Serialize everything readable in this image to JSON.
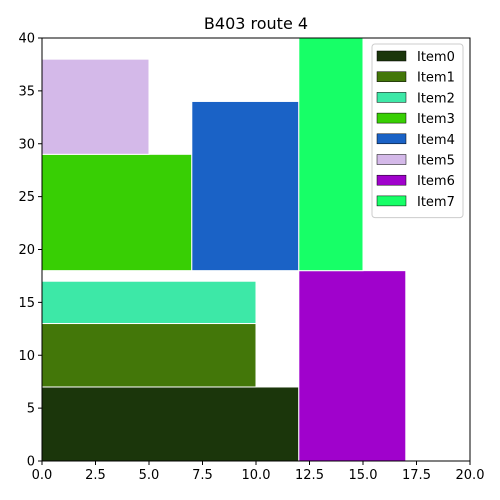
{
  "chart_data": {
    "type": "bar",
    "title": "B403 route 4",
    "xlabel": "",
    "ylabel": "",
    "xlim": [
      0,
      20
    ],
    "ylim": [
      0,
      40
    ],
    "xticks": [
      "0.0",
      "2.5",
      "5.0",
      "7.5",
      "10.0",
      "12.5",
      "15.0",
      "17.5",
      "20.0"
    ],
    "yticks": [
      "0",
      "5",
      "10",
      "15",
      "20",
      "25",
      "30",
      "35",
      "40"
    ],
    "grid": false,
    "legend_position": "top-right",
    "rectangles": [
      {
        "name": "Item0",
        "x0": 0,
        "x1": 12,
        "y0": 0,
        "y1": 7,
        "color": "#1b360b"
      },
      {
        "name": "Item1",
        "x0": 0,
        "x1": 10,
        "y0": 7,
        "y1": 13,
        "color": "#437709"
      },
      {
        "name": "Item2",
        "x0": 0,
        "x1": 10,
        "y0": 13,
        "y1": 17,
        "color": "#3de8a7"
      },
      {
        "name": "Item3",
        "x0": 0,
        "x1": 7,
        "y0": 18,
        "y1": 29,
        "color": "#38cf04"
      },
      {
        "name": "Item4",
        "x0": 7,
        "x1": 12,
        "y0": 18,
        "y1": 34,
        "color": "#1a62c6"
      },
      {
        "name": "Item5",
        "x0": 0,
        "x1": 5,
        "y0": 29,
        "y1": 38,
        "color": "#d4b9e9"
      },
      {
        "name": "Item6",
        "x0": 12,
        "x1": 17,
        "y0": 0,
        "y1": 18,
        "color": "#a002cc"
      },
      {
        "name": "Item7",
        "x0": 12,
        "x1": 15,
        "y0": 18,
        "y1": 40,
        "color": "#17ff67"
      }
    ]
  }
}
